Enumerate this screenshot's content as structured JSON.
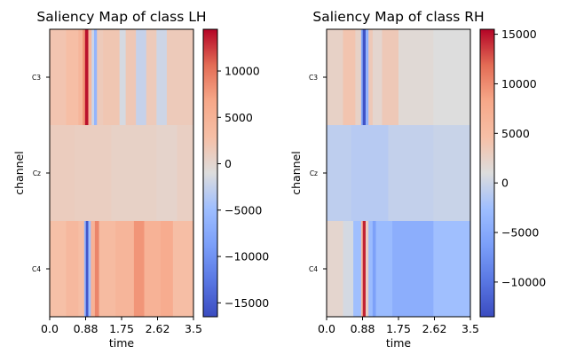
{
  "chart_data": [
    {
      "type": "heatmap",
      "title": "Saliency Map of class LH",
      "xlabel": "time",
      "ylabel": "channel",
      "xlim": [
        0,
        3.5
      ],
      "x_ticks": [
        "0.0",
        "0.88",
        "1.75",
        "2.62",
        "3.5"
      ],
      "x_tick_values": [
        0,
        0.875,
        1.75,
        2.625,
        3.5
      ],
      "channels": [
        "C3",
        "Cz",
        "C4"
      ],
      "colorbar": {
        "colormap": "coolwarm",
        "range": [
          -16500,
          14500
        ],
        "ticks": [
          "10000",
          "5000",
          "0",
          "−5000",
          "−10000",
          "−15000"
        ],
        "tick_values": [
          10000,
          5000,
          0,
          -5000,
          -10000,
          -15000
        ]
      },
      "rows": {
        "C3": [
          {
            "t": [
              0.0,
              0.4
            ],
            "v": 2200
          },
          {
            "t": [
              0.4,
              0.7
            ],
            "v": 3000
          },
          {
            "t": [
              0.7,
              0.8
            ],
            "v": 4500
          },
          {
            "t": [
              0.8,
              0.86
            ],
            "v": 8000
          },
          {
            "t": [
              0.86,
              0.94
            ],
            "v": 14000
          },
          {
            "t": [
              0.94,
              1.02
            ],
            "v": 4000
          },
          {
            "t": [
              1.02,
              1.08
            ],
            "v": -2000
          },
          {
            "t": [
              1.08,
              1.15
            ],
            "v": -6000
          },
          {
            "t": [
              1.15,
              1.3
            ],
            "v": 1500
          },
          {
            "t": [
              1.3,
              1.7
            ],
            "v": 2000
          },
          {
            "t": [
              1.7,
              1.85
            ],
            "v": -1500
          },
          {
            "t": [
              1.85,
              2.1
            ],
            "v": 1800
          },
          {
            "t": [
              2.1,
              2.35
            ],
            "v": -2500
          },
          {
            "t": [
              2.35,
              2.6
            ],
            "v": 1500
          },
          {
            "t": [
              2.6,
              2.85
            ],
            "v": -2000
          },
          {
            "t": [
              2.85,
              3.5
            ],
            "v": 1500
          }
        ],
        "Cz": [
          {
            "t": [
              0.0,
              0.6
            ],
            "v": 1200
          },
          {
            "t": [
              0.6,
              1.5
            ],
            "v": 1000
          },
          {
            "t": [
              1.5,
              2.6
            ],
            "v": 600
          },
          {
            "t": [
              2.6,
              3.1
            ],
            "v": 300
          },
          {
            "t": [
              3.1,
              3.5
            ],
            "v": 800
          }
        ],
        "C4": [
          {
            "t": [
              0.0,
              0.4
            ],
            "v": 2800
          },
          {
            "t": [
              0.4,
              0.7
            ],
            "v": 4000
          },
          {
            "t": [
              0.7,
              0.84
            ],
            "v": 3000
          },
          {
            "t": [
              0.84,
              0.88
            ],
            "v": -6000
          },
          {
            "t": [
              0.88,
              0.94
            ],
            "v": -15500
          },
          {
            "t": [
              0.94,
              1.0
            ],
            "v": -5000
          },
          {
            "t": [
              1.0,
              1.1
            ],
            "v": 5000
          },
          {
            "t": [
              1.1,
              1.2
            ],
            "v": 9000
          },
          {
            "t": [
              1.2,
              1.6
            ],
            "v": 3500
          },
          {
            "t": [
              1.6,
              2.05
            ],
            "v": 4500
          },
          {
            "t": [
              2.05,
              2.3
            ],
            "v": 8000
          },
          {
            "t": [
              2.3,
              2.7
            ],
            "v": 5000
          },
          {
            "t": [
              2.7,
              3.0
            ],
            "v": 6000
          },
          {
            "t": [
              3.0,
              3.5
            ],
            "v": 3000
          }
        ]
      }
    },
    {
      "type": "heatmap",
      "title": "Saliency Map of class RH",
      "xlabel": "time",
      "ylabel": "channel",
      "xlim": [
        0,
        3.5
      ],
      "x_ticks": [
        "0.0",
        "0.88",
        "1.75",
        "2.62",
        "3.5"
      ],
      "x_tick_values": [
        0,
        0.875,
        1.75,
        2.625,
        3.5
      ],
      "channels": [
        "C3",
        "Cz",
        "C4"
      ],
      "colorbar": {
        "colormap": "coolwarm",
        "range": [
          -13500,
          15500
        ],
        "ticks": [
          "15000",
          "10000",
          "5000",
          "0",
          "−5000",
          "−10000"
        ],
        "tick_values": [
          15000,
          10000,
          5000,
          0,
          -5000,
          -10000
        ]
      },
      "rows": {
        "C3": [
          {
            "t": [
              0.0,
              0.4
            ],
            "v": 2500
          },
          {
            "t": [
              0.4,
              0.7
            ],
            "v": 4000
          },
          {
            "t": [
              0.7,
              0.84
            ],
            "v": 2500
          },
          {
            "t": [
              0.84,
              0.88
            ],
            "v": -5000
          },
          {
            "t": [
              0.88,
              0.95
            ],
            "v": -13000
          },
          {
            "t": [
              0.95,
              1.02
            ],
            "v": -4000
          },
          {
            "t": [
              1.02,
              1.12
            ],
            "v": 3500
          },
          {
            "t": [
              1.12,
              1.35
            ],
            "v": 2000
          },
          {
            "t": [
              1.35,
              1.75
            ],
            "v": 3500
          },
          {
            "t": [
              1.75,
              2.6
            ],
            "v": 1500
          },
          {
            "t": [
              2.6,
              3.5
            ],
            "v": 1000
          }
        ],
        "Cz": [
          {
            "t": [
              0.0,
              0.6
            ],
            "v": -800
          },
          {
            "t": [
              0.6,
              1.5
            ],
            "v": -1200
          },
          {
            "t": [
              1.5,
              2.6
            ],
            "v": -500
          },
          {
            "t": [
              2.6,
              3.5
            ],
            "v": -200
          }
        ],
        "C4": [
          {
            "t": [
              0.0,
              0.4
            ],
            "v": 2000
          },
          {
            "t": [
              0.4,
              0.65
            ],
            "v": 500
          },
          {
            "t": [
              0.65,
              0.84
            ],
            "v": -2500
          },
          {
            "t": [
              0.84,
              0.88
            ],
            "v": 5000
          },
          {
            "t": [
              0.88,
              0.95
            ],
            "v": 14500
          },
          {
            "t": [
              0.95,
              1.02
            ],
            "v": 3000
          },
          {
            "t": [
              1.02,
              1.12
            ],
            "v": -3000
          },
          {
            "t": [
              1.12,
              1.2
            ],
            "v": -6000
          },
          {
            "t": [
              1.2,
              1.6
            ],
            "v": -3000
          },
          {
            "t": [
              1.6,
              2.6
            ],
            "v": -4500
          },
          {
            "t": [
              2.6,
              3.5
            ],
            "v": -2500
          }
        ]
      }
    }
  ]
}
